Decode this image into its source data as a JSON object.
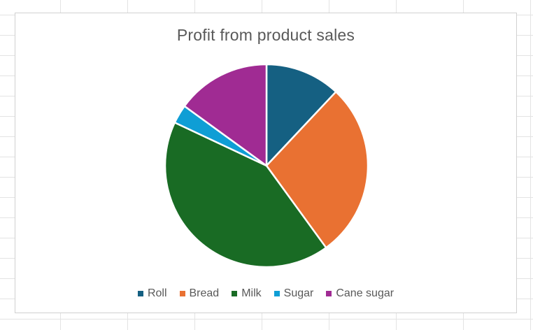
{
  "chart_data": {
    "type": "pie",
    "title": "Profit from product sales",
    "categories": [
      "Roll",
      "Bread",
      "Milk",
      "Sugar",
      "Cane sugar"
    ],
    "values": [
      12,
      28,
      42,
      3,
      15
    ],
    "colors": [
      "#156082",
      "#E97132",
      "#196B24",
      "#0F9ED5",
      "#A02B93"
    ],
    "legend_position": "bottom",
    "start_angle_deg": 0,
    "direction": "clockwise"
  }
}
